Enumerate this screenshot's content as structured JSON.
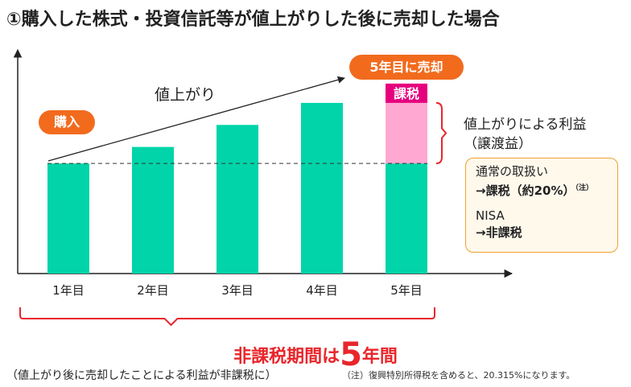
{
  "title": "①購入した株式・投資信託等が値上がりした後に売却した場合",
  "labels": {
    "buy": "購入",
    "sell": "5年目に売却",
    "rise": "値上がり",
    "tax_tag": "課税",
    "profit_line1": "値上がりによる利益",
    "profit_line2": "（譲渡益）"
  },
  "tax_box": {
    "normal_label": "通常の取扱い",
    "normal_value": "→課税（約20%）",
    "normal_note": "（注）",
    "nisa_label": "NISA",
    "nisa_value": "→非課税"
  },
  "summary": {
    "prefix": "非課税期間は",
    "number": "5",
    "suffix": "年間",
    "sub": "（値上がり後に売却したことによる利益が非課税に）"
  },
  "footnote": "（注）復興特別所得税を含めると、20.315%になります。",
  "colors": {
    "bar": "#00d4a8",
    "profit": "#ffa8d2",
    "tax_tag": "#e6007e",
    "pill": "#f26b1d",
    "summary": "#e8262b",
    "bracket": "#e8262b",
    "tax_box_border": "#f0a030"
  },
  "chart_data": {
    "type": "bar",
    "categories": [
      "1年目",
      "2年目",
      "3年目",
      "4年目",
      "5年目"
    ],
    "series": [
      {
        "values": [
          100,
          115,
          135,
          155,
          155
        ]
      }
    ],
    "stacked_segments_on_last": {
      "base": 100,
      "gain": 55
    },
    "reference_line": 100,
    "ylim": [
      0,
      190
    ]
  }
}
